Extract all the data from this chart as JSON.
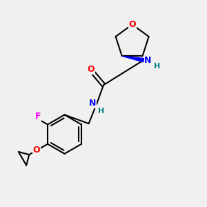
{
  "background_color": "#f0f0f0",
  "bond_color": "#000000",
  "bond_width": 1.5,
  "atom_colors": {
    "O": "#ff0000",
    "N": "#0000ff",
    "F": "#ff00ff",
    "H": "#008080",
    "C": "#000000"
  },
  "font_size": 9,
  "fig_size": [
    3.0,
    3.0
  ],
  "dpi": 100
}
